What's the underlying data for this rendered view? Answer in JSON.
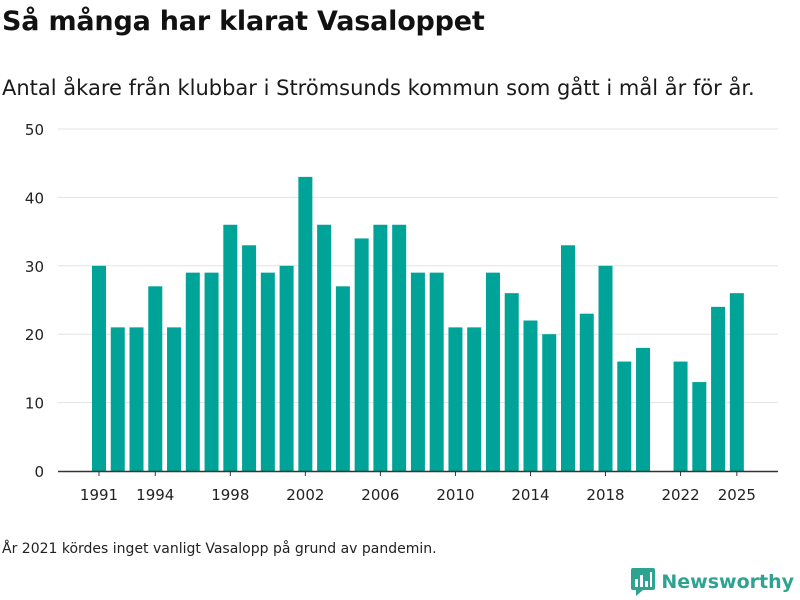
{
  "title": "Så många har klarat Vasaloppet",
  "subtitle": "Antal åkare från klubbar i Strömsunds kommun som gått i mål år för år.",
  "footnote": "År 2021 kördes inget vanligt Vasalopp på grund av pandemin.",
  "brand": {
    "name": "Newsworthy",
    "icon": "newsworthy-logo-icon",
    "color": "#2ea391"
  },
  "chart_data": {
    "type": "bar",
    "bar_color": "#00a398",
    "grid": true,
    "ylim": [
      0,
      50
    ],
    "yticks": [
      0,
      10,
      20,
      30,
      40,
      50
    ],
    "xticks": [
      1991,
      1994,
      1998,
      2002,
      2006,
      2010,
      2014,
      2018,
      2022,
      2025
    ],
    "categories": [
      1991,
      1992,
      1993,
      1994,
      1995,
      1996,
      1997,
      1998,
      1999,
      2000,
      2001,
      2002,
      2003,
      2004,
      2005,
      2006,
      2007,
      2008,
      2009,
      2010,
      2011,
      2012,
      2013,
      2014,
      2015,
      2016,
      2017,
      2018,
      2019,
      2020,
      2021,
      2022,
      2023,
      2024,
      2025
    ],
    "values": [
      30,
      21,
      21,
      27,
      21,
      29,
      29,
      36,
      33,
      29,
      30,
      43,
      36,
      27,
      34,
      36,
      36,
      29,
      29,
      21,
      21,
      29,
      26,
      22,
      20,
      33,
      23,
      30,
      16,
      18,
      null,
      16,
      13,
      24,
      26
    ]
  }
}
